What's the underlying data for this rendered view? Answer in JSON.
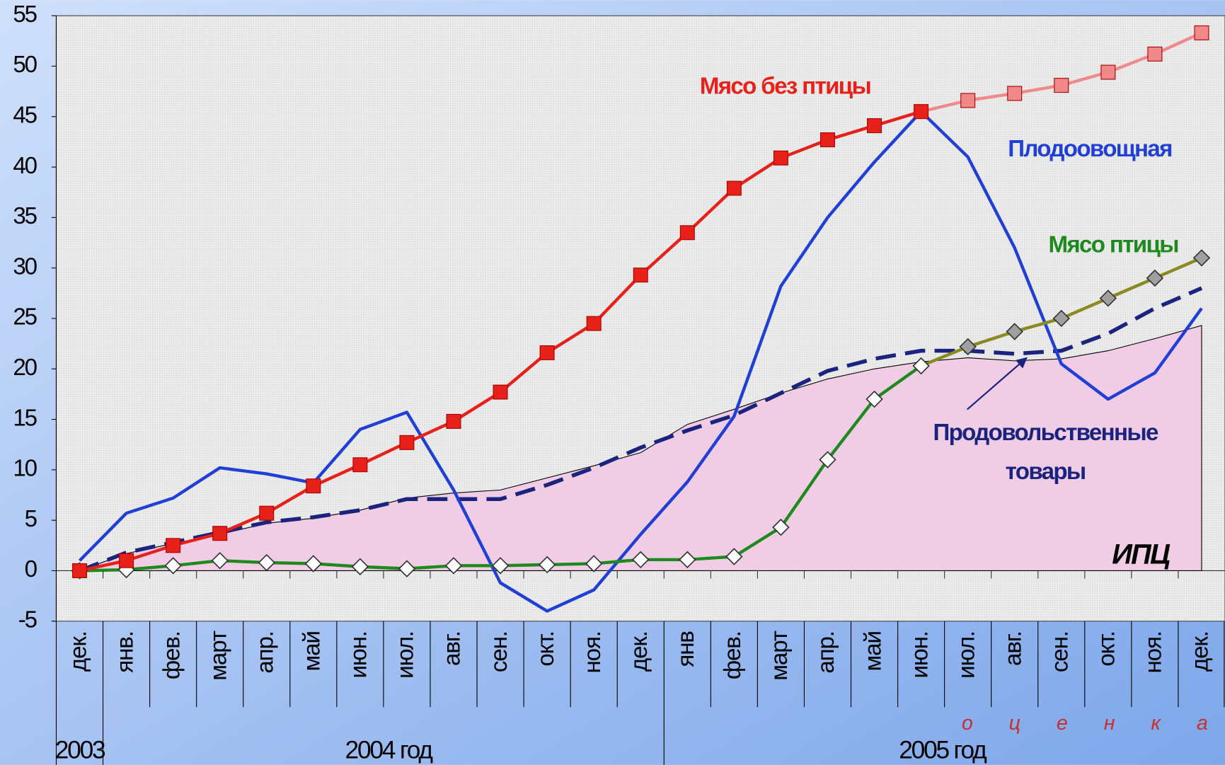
{
  "chart_data": {
    "type": "line",
    "categories": [
      "дек.",
      "янв.",
      "фев.",
      "март",
      "апр.",
      "май",
      "июн.",
      "июл.",
      "авг.",
      "сен.",
      "окт.",
      "ноя.",
      "дек.",
      "янв",
      "фев.",
      "март",
      "апр.",
      "май",
      "июн.",
      "июл.",
      "авг.",
      "сен.",
      "окт.",
      "ноя.",
      "дек."
    ],
    "ylim": [
      -5,
      55
    ],
    "yticks": [
      -5,
      0,
      5,
      10,
      15,
      20,
      25,
      30,
      35,
      40,
      45,
      50,
      55
    ],
    "year_labels": [
      "2003",
      "2004 год",
      "2005 год"
    ],
    "estimate_label": "о ц е н к а",
    "series": [
      {
        "name": "ИПЦ",
        "style": "area",
        "color": "#f4c4e4",
        "values": [
          0,
          1.7,
          2.7,
          3.6,
          4.7,
          5.2,
          6,
          7.2,
          7.7,
          8,
          9.2,
          10.4,
          11.7,
          14.5,
          16,
          17.6,
          19,
          20,
          20.7,
          21.1,
          20.8,
          21,
          21.8,
          23,
          24.3
        ]
      },
      {
        "name": "Продовольственные товары",
        "style": "dashed",
        "color": "#1a237e",
        "values": [
          0,
          1.8,
          2.8,
          3.8,
          4.8,
          5.3,
          6,
          7.1,
          7.1,
          7.1,
          8.5,
          10.2,
          12.2,
          13.9,
          15.4,
          17.6,
          19.8,
          21,
          21.8,
          21.8,
          21.5,
          21.8,
          23.5,
          26,
          28
        ]
      },
      {
        "name": "Плодоовощная",
        "style": "line",
        "color": "#1f3fd6",
        "values": [
          1,
          5.7,
          7.2,
          10.2,
          9.6,
          8.7,
          14,
          15.7,
          8,
          -1.2,
          -4,
          -1.9,
          3.6,
          8.8,
          15.3,
          28.2,
          35,
          40.5,
          45.5,
          41,
          32,
          20.5,
          17,
          19.6,
          26
        ]
      },
      {
        "name": "Мясо птицы",
        "style": "line",
        "marker": "diamond",
        "color": "#1e8a1e",
        "point_colors": [
          "#1e8a1e",
          "#1e8a1e",
          "#1e8a1e",
          "#1e8a1e",
          "#1e8a1e",
          "#1e8a1e",
          "#1e8a1e",
          "#1e8a1e",
          "#1e8a1e",
          "#1e8a1e",
          "#1e8a1e",
          "#1e8a1e",
          "#1e8a1e",
          "#1e8a1e",
          "#1e8a1e",
          "#1e8a1e",
          "#1e8a1e",
          "#1e8a1e",
          "#1e8a1e",
          "#8a8a20",
          "#8a8a20",
          "#8a8a20",
          "#8a8a20",
          "#8a8a20",
          "#8a8a20"
        ],
        "values": [
          0,
          0.1,
          0.5,
          1,
          0.8,
          0.7,
          0.4,
          0.2,
          0.5,
          0.5,
          0.6,
          0.7,
          1.1,
          1.1,
          1.4,
          4.3,
          11,
          17,
          20.3,
          22.2,
          23.7,
          25,
          27,
          29,
          31
        ]
      },
      {
        "name": "Мясо без птицы",
        "style": "line",
        "marker": "square",
        "color": "#e8201a",
        "point_colors": [
          "#e8201a",
          "#e8201a",
          "#e8201a",
          "#e8201a",
          "#e8201a",
          "#e8201a",
          "#e8201a",
          "#e8201a",
          "#e8201a",
          "#e8201a",
          "#e8201a",
          "#e8201a",
          "#e8201a",
          "#e8201a",
          "#e8201a",
          "#e8201a",
          "#e8201a",
          "#e8201a",
          "#e8201a",
          "#f08a8a",
          "#f08a8a",
          "#f08a8a",
          "#f08a8a",
          "#f08a8a",
          "#f08a8a"
        ],
        "values": [
          0,
          1,
          2.5,
          3.7,
          5.7,
          8.4,
          10.5,
          12.7,
          14.8,
          17.7,
          21.6,
          24.5,
          29.3,
          33.5,
          37.9,
          40.9,
          42.7,
          44.1,
          45.5,
          46.6,
          47.3,
          48.1,
          49.4,
          51.2,
          53.3
        ]
      }
    ]
  }
}
